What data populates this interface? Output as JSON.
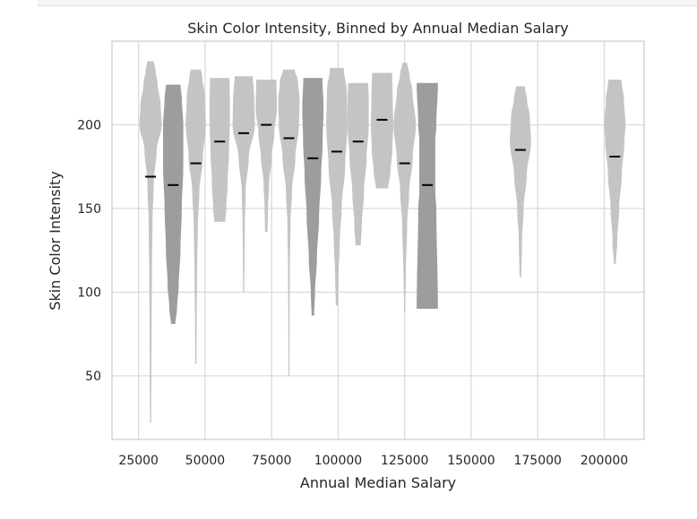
{
  "chart_data": {
    "type": "violin",
    "title": "Skin Color Intensity, Binned by Annual Median Salary",
    "xlabel": "Annual Median Salary",
    "ylabel": "Skin Color Intensity",
    "xlim": [
      15000,
      215000
    ],
    "ylim": [
      12,
      250
    ],
    "xticks": [
      "25000",
      "50000",
      "75000",
      "100000",
      "125000",
      "150000",
      "175000",
      "200000"
    ],
    "yticks": [
      "50",
      "100",
      "150",
      "200"
    ],
    "grid": true,
    "colors": {
      "light": "#c4c4c4",
      "dark": "#9d9d9d",
      "median": "#000000",
      "grid": "#d9d9d9",
      "spine": "#cccccc"
    },
    "violins": [
      {
        "x": 29500,
        "min": 22,
        "max": 238,
        "median": 169,
        "halfwidth": 4200,
        "shade": "light",
        "shape": [
          [
            22,
            0.05
          ],
          [
            50,
            0.07
          ],
          [
            80,
            0.09
          ],
          [
            110,
            0.12
          ],
          [
            140,
            0.17
          ],
          [
            165,
            0.28
          ],
          [
            185,
            0.55
          ],
          [
            200,
            1.0
          ],
          [
            212,
            0.9
          ],
          [
            225,
            0.62
          ],
          [
            232,
            0.45
          ],
          [
            238,
            0.3
          ]
        ]
      },
      {
        "x": 38000,
        "min": 81,
        "max": 224,
        "median": 164,
        "halfwidth": 3800,
        "shade": "dark",
        "shape": [
          [
            81,
            0.22
          ],
          [
            90,
            0.38
          ],
          [
            105,
            0.55
          ],
          [
            125,
            0.72
          ],
          [
            150,
            0.85
          ],
          [
            175,
            1.0
          ],
          [
            200,
            1.0
          ],
          [
            215,
            0.86
          ],
          [
            224,
            0.72
          ]
        ]
      },
      {
        "x": 46500,
        "min": 57,
        "max": 233,
        "median": 177,
        "halfwidth": 3800,
        "shade": "light",
        "shape": [
          [
            57,
            0.06
          ],
          [
            80,
            0.08
          ],
          [
            110,
            0.12
          ],
          [
            140,
            0.2
          ],
          [
            160,
            0.35
          ],
          [
            180,
            0.7
          ],
          [
            200,
            1.0
          ],
          [
            218,
            0.88
          ],
          [
            228,
            0.65
          ],
          [
            233,
            0.52
          ]
        ]
      },
      {
        "x": 55500,
        "min": 142,
        "max": 228,
        "median": 190,
        "halfwidth": 3800,
        "shade": "light",
        "shape": [
          [
            142,
            0.55
          ],
          [
            150,
            0.65
          ],
          [
            165,
            0.78
          ],
          [
            185,
            0.92
          ],
          [
            200,
            1.0
          ],
          [
            215,
            1.0
          ],
          [
            228,
            0.96
          ]
        ]
      },
      {
        "x": 64500,
        "min": 100,
        "max": 229,
        "median": 195,
        "halfwidth": 4200,
        "shade": "light",
        "shape": [
          [
            100,
            0.05
          ],
          [
            120,
            0.07
          ],
          [
            140,
            0.1
          ],
          [
            160,
            0.17
          ],
          [
            180,
            0.45
          ],
          [
            200,
            1.0
          ],
          [
            215,
            0.95
          ],
          [
            229,
            0.82
          ]
        ]
      },
      {
        "x": 73000,
        "min": 136,
        "max": 227,
        "median": 200,
        "halfwidth": 4000,
        "shade": "light",
        "shape": [
          [
            136,
            0.12
          ],
          [
            150,
            0.16
          ],
          [
            165,
            0.26
          ],
          [
            180,
            0.5
          ],
          [
            195,
            0.75
          ],
          [
            210,
            1.0
          ],
          [
            227,
            0.95
          ]
        ]
      },
      {
        "x": 81500,
        "min": 50,
        "max": 233,
        "median": 192,
        "halfwidth": 4000,
        "shade": "light",
        "shape": [
          [
            50,
            0.05
          ],
          [
            80,
            0.06
          ],
          [
            110,
            0.08
          ],
          [
            140,
            0.14
          ],
          [
            160,
            0.28
          ],
          [
            180,
            0.6
          ],
          [
            200,
            0.95
          ],
          [
            215,
            1.0
          ],
          [
            226,
            0.85
          ],
          [
            233,
            0.55
          ]
        ]
      },
      {
        "x": 90500,
        "min": 86,
        "max": 228,
        "median": 180,
        "halfwidth": 4000,
        "shade": "dark",
        "shape": [
          [
            86,
            0.12
          ],
          [
            100,
            0.2
          ],
          [
            120,
            0.38
          ],
          [
            145,
            0.58
          ],
          [
            170,
            0.78
          ],
          [
            190,
            0.92
          ],
          [
            210,
            1.0
          ],
          [
            228,
            0.9
          ]
        ]
      },
      {
        "x": 99500,
        "min": 92,
        "max": 234,
        "median": 184,
        "halfwidth": 4000,
        "shade": "light",
        "shape": [
          [
            92,
            0.1
          ],
          [
            110,
            0.16
          ],
          [
            130,
            0.28
          ],
          [
            150,
            0.45
          ],
          [
            175,
            0.78
          ],
          [
            200,
            1.0
          ],
          [
            220,
            0.93
          ],
          [
            234,
            0.65
          ]
        ]
      },
      {
        "x": 107500,
        "min": 128,
        "max": 225,
        "median": 190,
        "halfwidth": 4000,
        "shade": "light",
        "shape": [
          [
            128,
            0.25
          ],
          [
            140,
            0.35
          ],
          [
            160,
            0.55
          ],
          [
            180,
            0.8
          ],
          [
            200,
            1.0
          ],
          [
            215,
            1.0
          ],
          [
            225,
            0.95
          ]
        ]
      },
      {
        "x": 116500,
        "min": 162,
        "max": 231,
        "median": 203,
        "halfwidth": 4200,
        "shade": "light",
        "shape": [
          [
            162,
            0.55
          ],
          [
            172,
            0.75
          ],
          [
            185,
            0.92
          ],
          [
            200,
            1.0
          ],
          [
            215,
            0.95
          ],
          [
            231,
            0.9
          ]
        ]
      },
      {
        "x": 125000,
        "min": 88,
        "max": 237,
        "median": 177,
        "halfwidth": 4200,
        "shade": "light",
        "shape": [
          [
            88,
            0.05
          ],
          [
            110,
            0.1
          ],
          [
            140,
            0.22
          ],
          [
            160,
            0.4
          ],
          [
            180,
            0.72
          ],
          [
            200,
            1.0
          ],
          [
            220,
            0.7
          ],
          [
            230,
            0.42
          ],
          [
            237,
            0.22
          ]
        ]
      },
      {
        "x": 133500,
        "min": 90,
        "max": 225,
        "median": 164,
        "halfwidth": 4000,
        "shade": "dark",
        "shape": [
          [
            90,
            1.0
          ],
          [
            150,
            0.85
          ],
          [
            160,
            0.75
          ],
          [
            190,
            0.75
          ],
          [
            200,
            0.85
          ],
          [
            225,
            1.0
          ]
        ]
      },
      {
        "x": 168500,
        "min": 109,
        "max": 223,
        "median": 185,
        "halfwidth": 4000,
        "shade": "light",
        "shape": [
          [
            109,
            0.08
          ],
          [
            130,
            0.15
          ],
          [
            150,
            0.3
          ],
          [
            170,
            0.6
          ],
          [
            190,
            1.0
          ],
          [
            205,
            0.88
          ],
          [
            215,
            0.62
          ],
          [
            223,
            0.42
          ]
        ]
      },
      {
        "x": 204000,
        "min": 117,
        "max": 227,
        "median": 181,
        "halfwidth": 4000,
        "shade": "light",
        "shape": [
          [
            117,
            0.1
          ],
          [
            130,
            0.22
          ],
          [
            150,
            0.4
          ],
          [
            170,
            0.65
          ],
          [
            190,
            0.9
          ],
          [
            200,
            1.0
          ],
          [
            215,
            0.85
          ],
          [
            227,
            0.62
          ]
        ]
      }
    ]
  }
}
